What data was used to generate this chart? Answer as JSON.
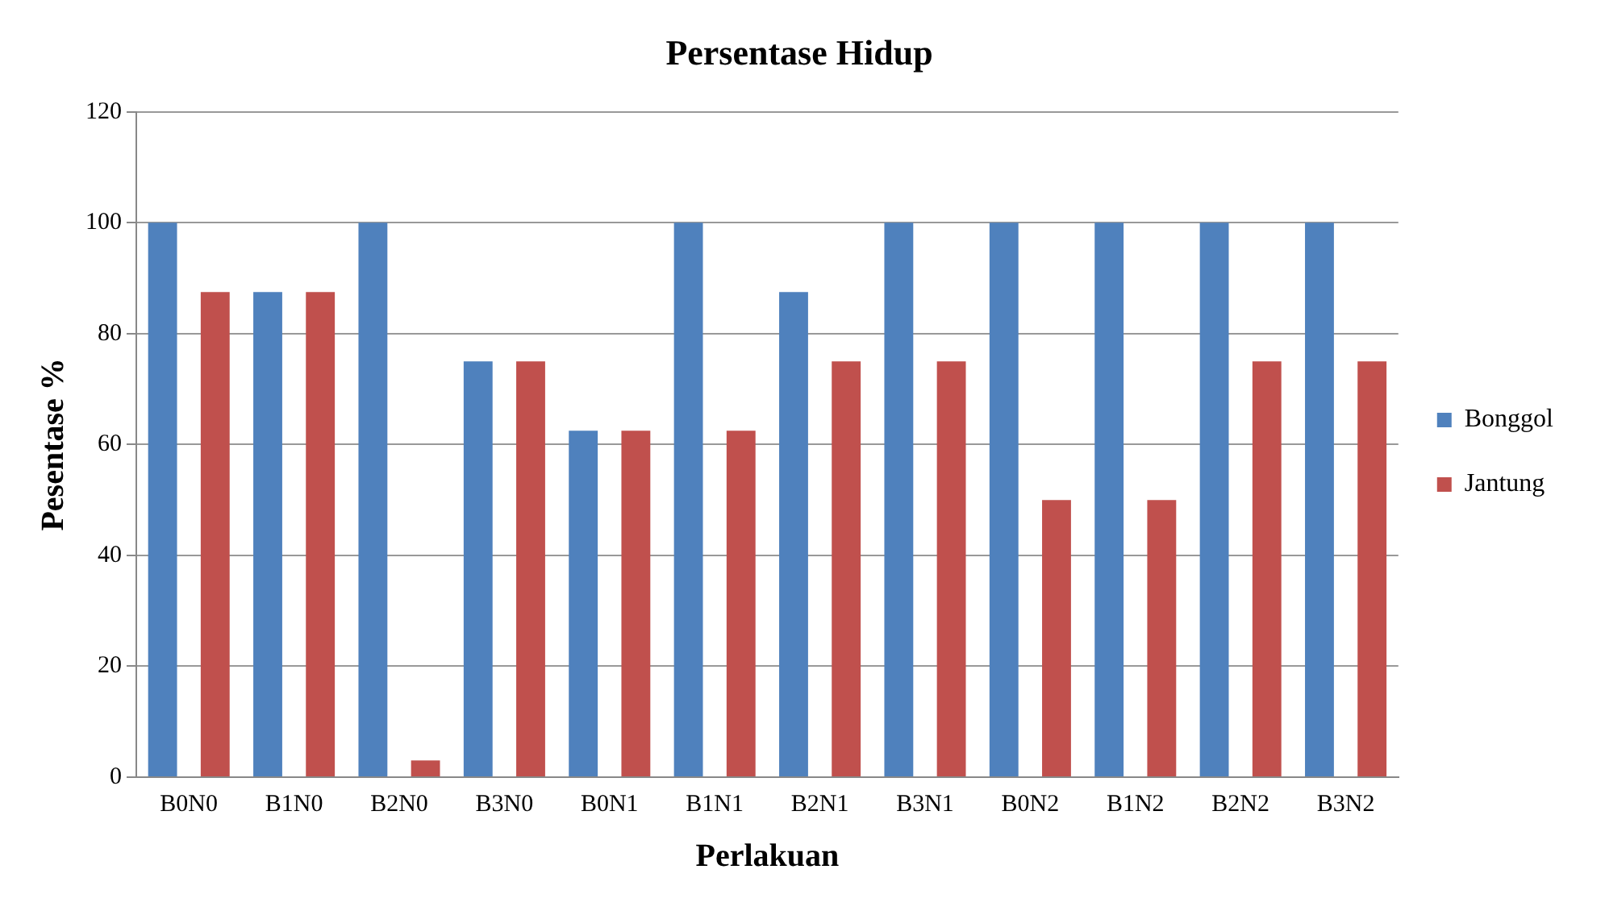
{
  "chart_data": {
    "type": "bar",
    "title": "Persentase Hidup",
    "xlabel": "Perlakuan",
    "ylabel": "Pesentase %",
    "categories": [
      "B0N0",
      "B1N0",
      "B2N0",
      "B3N0",
      "B0N1",
      "B1N1",
      "B2N1",
      "B3N1",
      "B0N2",
      "B1N2",
      "B2N2",
      "B3N2"
    ],
    "series": [
      {
        "name": "Bonggol",
        "color": "#4f81bd",
        "values": [
          100,
          87.5,
          100,
          75,
          62.5,
          100,
          87.5,
          100,
          100,
          100,
          100,
          100
        ]
      },
      {
        "name": "Jantung",
        "color": "#c0504d",
        "values": [
          87.5,
          87.5,
          3,
          75,
          62.5,
          62.5,
          75,
          75,
          50,
          50,
          75,
          75
        ]
      }
    ],
    "ylim": [
      0,
      120
    ],
    "yticks": [
      0,
      20,
      40,
      60,
      80,
      100,
      120
    ],
    "grid": "y",
    "legend": "right"
  }
}
